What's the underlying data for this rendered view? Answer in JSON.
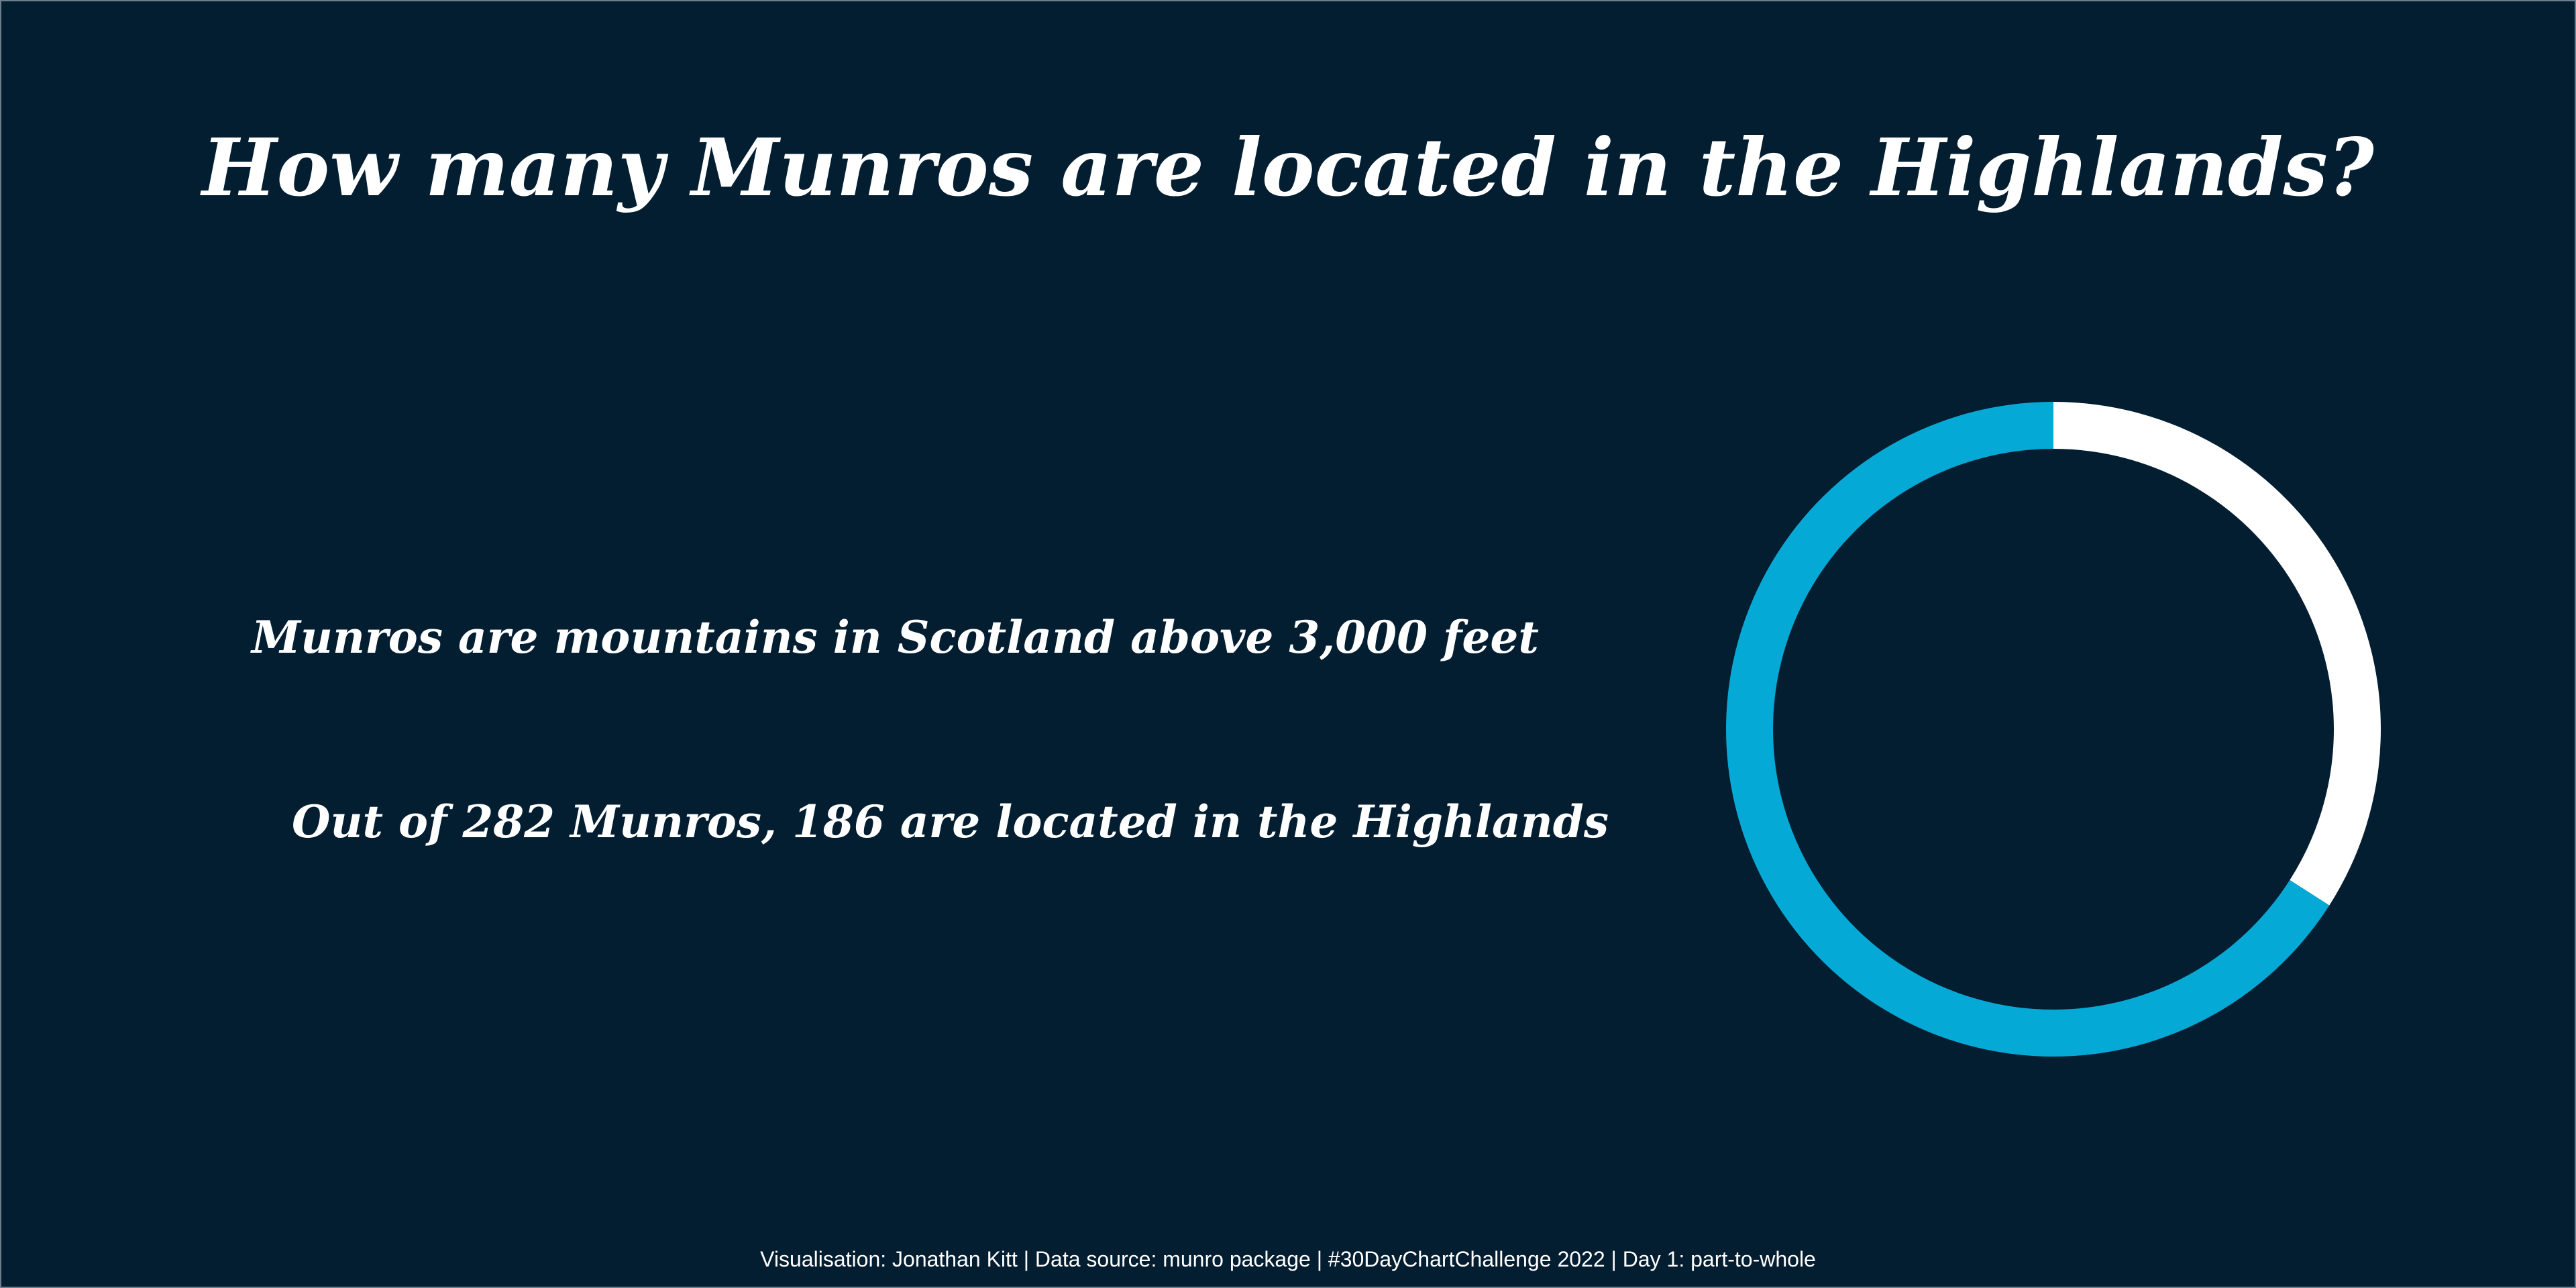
{
  "chart_data": {
    "type": "pie",
    "title": "How many Munros are located in the Highlands?",
    "subtitles": [
      "Munros are mountains in Scotland above 3,000 feet",
      "Out of 282 Munros, 186 are located in the Highlands"
    ],
    "total": 282,
    "slices": [
      {
        "value": 96,
        "color": "#ffffff"
      },
      {
        "value": 186,
        "color": "#05a9d6"
      }
    ]
  },
  "colors": {
    "background": "#041e31",
    "highlight": "#05a9d6",
    "other": "#ffffff"
  },
  "caption": "Visualisation: Jonathan Kitt | Data source: munro package | #30DayChartChallenge 2022 | Day 1: part-to-whole"
}
